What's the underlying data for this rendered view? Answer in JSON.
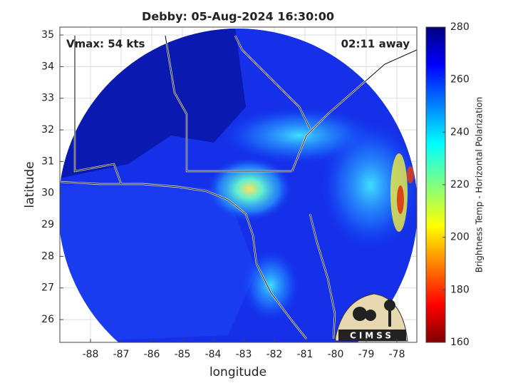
{
  "title": "Debby: 05-Aug-2024 16:30:00",
  "annotations": {
    "vmax": "Vmax: 54 kts",
    "away": "02:11 away"
  },
  "axes": {
    "xlabel": "longitude",
    "ylabel": "latitude",
    "xlim": [
      -89,
      -77.35
    ],
    "ylim": [
      25.28,
      35.25
    ],
    "xticks": [
      -88,
      -87,
      -86,
      -85,
      -84,
      -83,
      -82,
      -81,
      -80,
      -79,
      -78
    ],
    "yticks": [
      26,
      27,
      28,
      29,
      30,
      31,
      32,
      33,
      34,
      35
    ],
    "grid": true
  },
  "colorbar": {
    "label": "Brightness Temp - Horizontal Polarization",
    "lim": [
      160,
      280
    ],
    "ticks": [
      160,
      180,
      200,
      220,
      240,
      260,
      280
    ]
  },
  "logo": "CIMSS"
}
